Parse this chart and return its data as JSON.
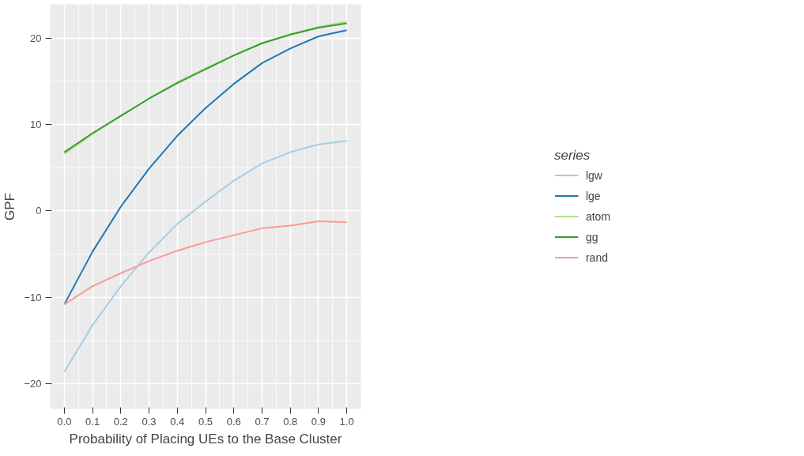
{
  "chart_data": {
    "type": "line",
    "xlabel": "Probability of Placing UEs to the Base Cluster",
    "ylabel": "GPF",
    "legend_title": "series",
    "legend": "right",
    "grid": true,
    "x": [
      0.0,
      0.1,
      0.2,
      0.3,
      0.4,
      0.5,
      0.6,
      0.7,
      0.8,
      0.9,
      1.0
    ],
    "xlim": [
      -0.05,
      1.05
    ],
    "ylim": [
      -22.9,
      23.9
    ],
    "xticks": [
      {
        "value": 0.0,
        "label": "0.0"
      },
      0.1,
      0.2,
      0.3,
      0.4,
      0.5,
      0.6,
      0.7,
      0.8,
      0.9,
      {
        "value": 1.0,
        "label": "1.0"
      }
    ],
    "yticks": [
      {
        "value": -20,
        "label": "−20"
      },
      {
        "value": -10,
        "label": "−10"
      },
      0,
      10,
      20
    ],
    "series": [
      {
        "name": "lgw",
        "color": "#a6cee3",
        "values": [
          -18.6,
          -13.2,
          -8.7,
          -4.8,
          -1.5,
          1.1,
          3.5,
          5.5,
          6.8,
          7.7,
          8.1
        ]
      },
      {
        "name": "lge",
        "color": "#1f78b4",
        "values": [
          -10.8,
          -4.7,
          0.5,
          4.9,
          8.7,
          11.9,
          14.7,
          17.1,
          18.8,
          20.2,
          20.9
        ]
      },
      {
        "name": "atom",
        "color": "#b2df8a",
        "values": [
          6.6,
          8.9,
          11.0,
          13.0,
          14.9,
          16.5,
          18.0,
          19.4,
          20.4,
          21.3,
          21.9
        ]
      },
      {
        "name": "gg",
        "color": "#33a02c",
        "values": [
          6.8,
          9.0,
          11.0,
          13.0,
          14.8,
          16.4,
          18.0,
          19.4,
          20.4,
          21.2,
          21.7
        ]
      },
      {
        "name": "rand",
        "color": "#fb9a99",
        "values": [
          -10.8,
          -8.7,
          -7.2,
          -5.8,
          -4.6,
          -3.6,
          -2.8,
          -2.0,
          -1.7,
          -1.2,
          -1.3
        ]
      }
    ]
  }
}
